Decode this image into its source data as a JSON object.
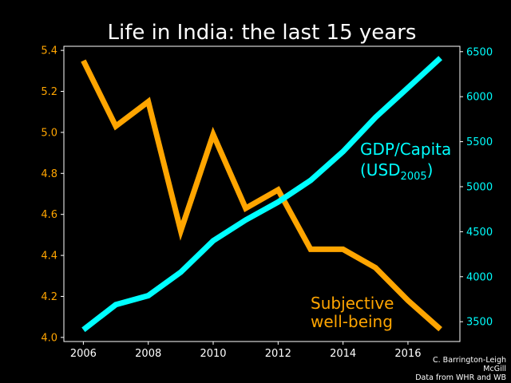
{
  "chart_data": {
    "type": "line",
    "title": "Life in India: the last 15 years",
    "x": [
      2006,
      2007,
      2008,
      2009,
      2010,
      2011,
      2012,
      2013,
      2014,
      2015,
      2016,
      2017
    ],
    "xticks": [
      "2006",
      "2008",
      "2010",
      "2012",
      "2014",
      "2016"
    ],
    "xlim": [
      2005.4,
      2017.6
    ],
    "series": [
      {
        "name": "Subjective well-being",
        "axis": "left",
        "color": "#FFA500",
        "label_lines": [
          "Subjective",
          "well-being"
        ],
        "values": [
          5.35,
          5.03,
          5.15,
          4.52,
          4.99,
          4.63,
          4.72,
          4.43,
          4.43,
          4.34,
          4.18,
          4.04
        ]
      },
      {
        "name": "GDP/Capita (USD2005)",
        "axis": "right",
        "color": "#00FFFF",
        "label_line1": "GDP/Capita",
        "label_line2_main": "(USD",
        "label_line2_sub": "2005",
        "label_line2_end": ")",
        "values": [
          3410,
          3690,
          3790,
          4050,
          4400,
          4630,
          4830,
          5070,
          5390,
          5770,
          6100,
          6430
        ]
      }
    ],
    "left_axis": {
      "ylim": [
        3.98,
        5.42
      ],
      "ticks": [
        "4.0",
        "4.2",
        "4.4",
        "4.6",
        "4.8",
        "5.0",
        "5.2",
        "5.4"
      ],
      "color": "#FFA500"
    },
    "right_axis": {
      "ylim": [
        3280,
        6560
      ],
      "ticks": [
        "3500",
        "4000",
        "4500",
        "5000",
        "5500",
        "6000",
        "6500"
      ],
      "color": "#00FFFF"
    },
    "grid": false
  },
  "credit": {
    "line1": "C. Barrington-Leigh",
    "line2": "McGill",
    "line3": "Data from WHR and WB"
  }
}
